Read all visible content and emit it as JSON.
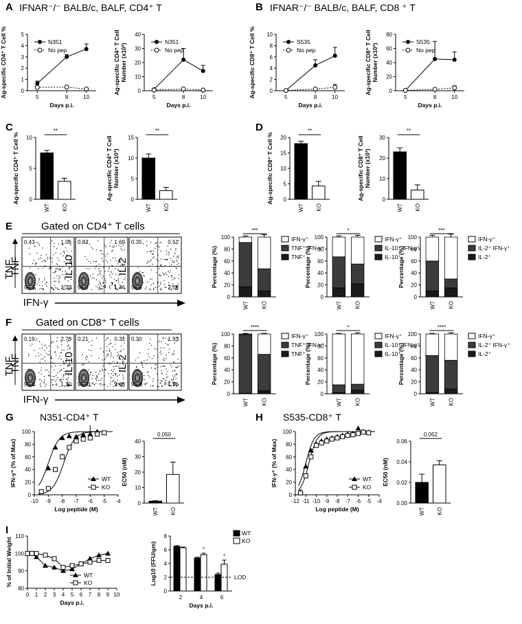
{
  "panels": {
    "A": {
      "label": "A",
      "title": "IFNAR⁻/⁻ BALB/c, BALF, CD4⁺ T"
    },
    "B": {
      "label": "B",
      "title": "IFNAR⁻/⁻  BALB/c, BALF, CD8 ⁺ T"
    },
    "C": {
      "label": "C"
    },
    "D": {
      "label": "D"
    },
    "E": {
      "label": "E",
      "gate_title": "Gated on CD4⁺ T cells"
    },
    "F": {
      "label": "F",
      "gate_title": "Gated on CD8⁺ T cells"
    },
    "G": {
      "label": "G",
      "title": "N351-CD4⁺ T"
    },
    "H": {
      "label": "H",
      "title": "S535-CD8⁺ T"
    },
    "I": {
      "label": "I"
    }
  },
  "flow": {
    "x_label": "IFN-γ",
    "y_label": "TNF",
    "E": {
      "plots": [
        {
          "ylabel": "TNF",
          "q": [
            "0.43",
            "1.06",
            "96.3",
            "2.20"
          ]
        },
        {
          "ylabel": "IL-10",
          "q": [
            "0.83",
            "1.69",
            "96.0",
            "1.46"
          ]
        },
        {
          "ylabel": "IL-2",
          "q": [
            "0.35",
            "0.51",
            "96.6",
            "2.58"
          ]
        }
      ]
    },
    "F": {
      "plots": [
        {
          "ylabel": "TNF",
          "q": [
            "0.19",
            "2.70",
            "95.8",
            "1.30"
          ]
        },
        {
          "ylabel": "IL-10",
          "q": [
            "0.21",
            "0.32",
            "95.8",
            "3.68"
          ]
        },
        {
          "ylabel": "IL-2",
          "q": [
            "0.30",
            "1.93",
            "95.8",
            "1.96"
          ]
        }
      ]
    }
  },
  "chart_data": [
    {
      "id": "A1",
      "type": "line",
      "x": [
        5,
        8,
        10
      ],
      "xlabel": "Days p.i.",
      "ylabel": "Ag-specific CD4⁺ T Cell %",
      "ylim": [
        0,
        5
      ],
      "yticks": [
        0,
        1,
        2,
        3,
        4,
        5
      ],
      "series": [
        {
          "name": "N351",
          "values": [
            0.65,
            3.0,
            3.7
          ],
          "err": [
            0.2,
            0.2,
            0.45
          ]
        },
        {
          "name": "No pep",
          "values": [
            0.3,
            0.32,
            0.15
          ],
          "err": [
            0.05,
            0.05,
            0.05
          ]
        }
      ]
    },
    {
      "id": "A2",
      "type": "line",
      "x": [
        5,
        8,
        10
      ],
      "xlabel": "Days p.i.",
      "ylabel": "Ag-specific CD4⁺ T Cell Number (x10²)",
      "ylim": [
        0,
        40
      ],
      "yticks": [
        0,
        10,
        20,
        30,
        40
      ],
      "series": [
        {
          "name": "N351",
          "values": [
            1,
            22,
            14
          ],
          "err": [
            0.5,
            8,
            4
          ]
        },
        {
          "name": "No pep",
          "values": [
            0.5,
            1.2,
            0.5
          ],
          "err": [
            0.2,
            0.3,
            0.2
          ]
        }
      ]
    },
    {
      "id": "B1",
      "type": "line",
      "x": [
        5,
        8,
        10
      ],
      "xlabel": "Days p.i.",
      "ylabel": "Ag-specific CD8⁺ T Cell %",
      "ylim": [
        0,
        10
      ],
      "yticks": [
        0,
        2,
        4,
        6,
        8,
        10
      ],
      "series": [
        {
          "name": "S535",
          "values": [
            0.05,
            4.5,
            6.2
          ],
          "err": [
            0.05,
            1.0,
            1.5
          ]
        },
        {
          "name": "No pep",
          "values": [
            0.05,
            0.3,
            0.6
          ],
          "err": [
            0.05,
            0.2,
            0.5
          ]
        }
      ]
    },
    {
      "id": "B2",
      "type": "line",
      "x": [
        5,
        8,
        10
      ],
      "xlabel": "Days p.i.",
      "ylabel": "Ag-specific CD8⁺ T Cell Number (x10²)",
      "ylim": [
        0,
        80
      ],
      "yticks": [
        0,
        20,
        40,
        60,
        80
      ],
      "series": [
        {
          "name": "S535",
          "values": [
            0.5,
            45,
            44
          ],
          "err": [
            0.2,
            25,
            11
          ]
        },
        {
          "name": "No pep",
          "values": [
            0.5,
            2,
            4
          ],
          "err": [
            0.2,
            1.5,
            3
          ]
        }
      ]
    },
    {
      "id": "C1",
      "type": "bar",
      "categories": [
        "WT",
        "KO"
      ],
      "values": [
        7.5,
        2.9
      ],
      "err": [
        0.4,
        0.5
      ],
      "ylabel": "Ag-specific CD4⁺ T Cell %",
      "ylim": [
        0,
        10
      ],
      "yticks": [
        0,
        5,
        10
      ],
      "sig": "**"
    },
    {
      "id": "C2",
      "type": "bar",
      "categories": [
        "WT",
        "KO"
      ],
      "values": [
        10.0,
        2.1
      ],
      "err": [
        1.0,
        0.8
      ],
      "ylabel": "Ag-specific CD4⁺ T Cell Number (x10³)",
      "ylim": [
        0,
        15
      ],
      "yticks": [
        0,
        5,
        10,
        15
      ],
      "sig": "**"
    },
    {
      "id": "D1",
      "type": "bar",
      "categories": [
        "WT",
        "KO"
      ],
      "values": [
        18,
        4.3
      ],
      "err": [
        0.8,
        1.5
      ],
      "ylabel": "Ag-specific CD8⁺ T Cell %",
      "ylim": [
        0,
        20
      ],
      "yticks": [
        0,
        5,
        10,
        15,
        20
      ],
      "sig": "**"
    },
    {
      "id": "D2",
      "type": "bar",
      "categories": [
        "WT",
        "KO"
      ],
      "values": [
        23,
        4.5
      ],
      "err": [
        2.0,
        2.5
      ],
      "ylabel": "Ag-specific CD8⁺ T Cell Number (x10³)",
      "ylim": [
        0,
        30
      ],
      "yticks": [
        0,
        10,
        20,
        30
      ],
      "sig": "**"
    },
    {
      "id": "E1",
      "type": "stacked-bar",
      "categories": [
        "WT",
        "KO"
      ],
      "ylabel": "Percentage (%)",
      "ylim": [
        0,
        100
      ],
      "sig": "***",
      "series": [
        {
          "name": "TNF⁺",
          "values": [
            17,
            10
          ]
        },
        {
          "name": "TNF⁺ IFN-γ⁺",
          "values": [
            74,
            37
          ]
        },
        {
          "name": "IFN-γ⁺",
          "values": [
            9,
            53
          ]
        }
      ],
      "err": [
        2,
        4
      ]
    },
    {
      "id": "E2",
      "type": "stacked-bar",
      "categories": [
        "WT",
        "KO"
      ],
      "ylabel": "Percentage (%)",
      "ylim": [
        0,
        100
      ],
      "sig": "*",
      "series": [
        {
          "name": "IL-10⁺",
          "values": [
            15,
            22
          ]
        },
        {
          "name": "IL-10⁺ IFN-γ⁺",
          "values": [
            52,
            33
          ]
        },
        {
          "name": "IFN-γ⁺",
          "values": [
            33,
            45
          ]
        }
      ],
      "err": [
        2,
        3
      ]
    },
    {
      "id": "E3",
      "type": "stacked-bar",
      "categories": [
        "WT",
        "KO"
      ],
      "ylabel": "Percentage (%)",
      "ylim": [
        0,
        100
      ],
      "sig": "***",
      "series": [
        {
          "name": "IL-2⁺",
          "values": [
            10,
            15
          ]
        },
        {
          "name": "IL-2⁺ IFN-γ⁺",
          "values": [
            50,
            15
          ]
        },
        {
          "name": "IFN-γ⁺",
          "values": [
            40,
            70
          ]
        }
      ],
      "err": [
        3,
        5
      ]
    },
    {
      "id": "F1",
      "type": "stacked-bar",
      "categories": [
        "WT",
        "KO"
      ],
      "ylabel": "Percentage (%)",
      "ylim": [
        0,
        100
      ],
      "sig": "****",
      "series": [
        {
          "name": "TNF⁺",
          "values": [
            1,
            5
          ]
        },
        {
          "name": "TNF⁺ IFN-γ⁺",
          "values": [
            98,
            61
          ]
        },
        {
          "name": "IFN-γ⁺",
          "values": [
            1,
            34
          ]
        }
      ],
      "err": [
        1,
        1
      ]
    },
    {
      "id": "F2",
      "type": "stacked-bar",
      "categories": [
        "WT",
        "KO"
      ],
      "ylabel": "Percentage (%)",
      "ylim": [
        0,
        100
      ],
      "sig": "*",
      "series": [
        {
          "name": "IL-10⁺",
          "values": [
            2,
            6
          ]
        },
        {
          "name": "IL-10⁺ IFN-γ⁺",
          "values": [
            13,
            10
          ]
        },
        {
          "name": "IFN-γ⁺",
          "values": [
            85,
            84
          ]
        }
      ],
      "err": [
        1,
        2
      ]
    },
    {
      "id": "F3",
      "type": "stacked-bar",
      "categories": [
        "WT",
        "KO"
      ],
      "ylabel": "Percentage (%)",
      "ylim": [
        0,
        100
      ],
      "sig": "****",
      "series": [
        {
          "name": "IL-2⁺",
          "values": [
            2,
            8
          ]
        },
        {
          "name": "IL-2⁺ IFN-γ⁺",
          "values": [
            62,
            48
          ]
        },
        {
          "name": "IFN-γ⁺",
          "values": [
            36,
            44
          ]
        }
      ],
      "err": [
        1,
        2
      ]
    },
    {
      "id": "G1",
      "type": "scatter",
      "xlabel": "Log peptide (M)",
      "ylabel": "IFN-γ⁺ (% of Max)",
      "xlim": [
        -10,
        -4
      ],
      "xticks": [
        -10,
        -9,
        -8,
        -7,
        -6,
        -5,
        -4
      ],
      "ylim": [
        0,
        100
      ],
      "yticks": [
        0,
        20,
        40,
        60,
        80,
        100
      ],
      "series": [
        {
          "name": "WT",
          "x": [
            -9.5,
            -9,
            -8.5,
            -8,
            -7.5,
            -7,
            -6.5,
            -6,
            -5.5,
            -5
          ],
          "values": [
            5,
            42,
            75,
            90,
            93,
            92,
            95,
            96,
            100,
            98
          ],
          "err": [
            2,
            4,
            4,
            3,
            3,
            3,
            5,
            14,
            0,
            0
          ]
        },
        {
          "name": "KO",
          "x": [
            -9.5,
            -9,
            -8.5,
            -8,
            -7.5,
            -7,
            -6.5,
            -6,
            -5.5,
            -5
          ],
          "values": [
            5,
            10,
            40,
            60,
            75,
            85,
            88,
            90,
            96,
            98
          ],
          "err": [
            2,
            3,
            3,
            5,
            4,
            4,
            3,
            3,
            3,
            2
          ]
        }
      ]
    },
    {
      "id": "G2",
      "type": "bar",
      "categories": [
        "WT",
        "KO"
      ],
      "values": [
        1.2,
        18.5
      ],
      "err": [
        0.3,
        8.0
      ],
      "ylabel": "EC50 (nM)",
      "ylim": [
        0,
        40
      ],
      "yticks": [
        0,
        10,
        20,
        30,
        40
      ],
      "p": "0.050"
    },
    {
      "id": "H1",
      "type": "scatter",
      "xlabel": "Log peptide (M)",
      "ylabel": "IFN-γ⁺ (% of Max)",
      "xlim": [
        -12,
        -4
      ],
      "xticks": [
        -12,
        -11,
        -10,
        -9,
        -8,
        -7,
        -6,
        -5,
        -4
      ],
      "ylim": [
        0,
        100
      ],
      "yticks": [
        0,
        20,
        40,
        60,
        80,
        100
      ],
      "series": [
        {
          "name": "WT",
          "x": [
            -11.5,
            -11,
            -10.5,
            -10,
            -9.5,
            -9,
            -8.5,
            -8,
            -7.5,
            -7,
            -6.5,
            -6,
            -5.5,
            -5
          ],
          "values": [
            5,
            45,
            70,
            80,
            85,
            88,
            90,
            92,
            94,
            96,
            97,
            105,
            100,
            99
          ],
          "err": [
            2,
            6,
            4,
            3,
            3,
            3,
            2,
            2,
            2,
            2,
            2,
            2,
            2,
            2
          ]
        },
        {
          "name": "KO",
          "x": [
            -11.5,
            -11,
            -10.5,
            -10,
            -9.5,
            -9,
            -8.5,
            -8,
            -7.5,
            -7,
            -6.5,
            -6,
            -5.5,
            -5
          ],
          "values": [
            3,
            30,
            60,
            78,
            82,
            85,
            88,
            90,
            92,
            94,
            95,
            97,
            99,
            98
          ],
          "err": [
            2,
            4,
            4,
            3,
            3,
            3,
            2,
            2,
            2,
            2,
            2,
            2,
            2,
            2
          ]
        }
      ]
    },
    {
      "id": "H2",
      "type": "bar",
      "categories": [
        "WT",
        "KO"
      ],
      "values": [
        0.02,
        0.037
      ],
      "err": [
        0.008,
        0.004
      ],
      "ylabel": "EC50 (nM)",
      "ylim": [
        0,
        0.06
      ],
      "yticks": [
        0,
        0.02,
        0.04,
        0.06
      ],
      "p": "0.052"
    },
    {
      "id": "I1",
      "type": "line",
      "xlabel": "Days p.i.",
      "ylabel": "% of Initial Weight",
      "xlim": [
        0,
        10
      ],
      "xticks": [
        0,
        1,
        2,
        3,
        4,
        5,
        6,
        7,
        8,
        9,
        10
      ],
      "ylim": [
        80,
        110
      ],
      "yticks": [
        80,
        90,
        100,
        110
      ],
      "series": [
        {
          "name": "WT",
          "x": [
            0,
            0.5,
            1,
            2,
            3,
            4,
            5,
            6,
            7,
            8,
            9
          ],
          "values": [
            100,
            100,
            98,
            93,
            92,
            90,
            91,
            94,
            97,
            99,
            100
          ],
          "err": [
            0.5,
            0.5,
            0.5,
            1,
            1,
            1,
            1,
            1,
            1,
            1,
            1
          ]
        },
        {
          "name": "KO",
          "x": [
            0,
            0.5,
            1,
            2,
            3,
            4,
            5,
            6,
            7,
            8,
            9
          ],
          "values": [
            100,
            100,
            100,
            99,
            97,
            92,
            93,
            94,
            95,
            96,
            96
          ],
          "err": [
            0.5,
            0.5,
            0.5,
            1,
            1,
            1,
            1,
            1,
            1,
            1,
            1
          ]
        }
      ]
    },
    {
      "id": "I2",
      "type": "bar",
      "categories": [
        "2",
        "4",
        "6"
      ],
      "xlabel": "Days p.i.",
      "ylabel": "Log10 (FFU/gm)",
      "ylim": [
        0,
        8
      ],
      "yticks": [
        0,
        2,
        4,
        6,
        8
      ],
      "lod": 2,
      "lod_label": "LOD",
      "series": [
        {
          "name": "WT",
          "values": [
            6.5,
            4.8,
            2.4
          ],
          "err": [
            0.1,
            0.1,
            0.2
          ]
        },
        {
          "name": "KO",
          "values": [
            6.3,
            5.3,
            3.9
          ],
          "err": [
            0.1,
            0.2,
            0.6
          ]
        }
      ],
      "sig": [
        "",
        "*",
        "*"
      ]
    }
  ]
}
